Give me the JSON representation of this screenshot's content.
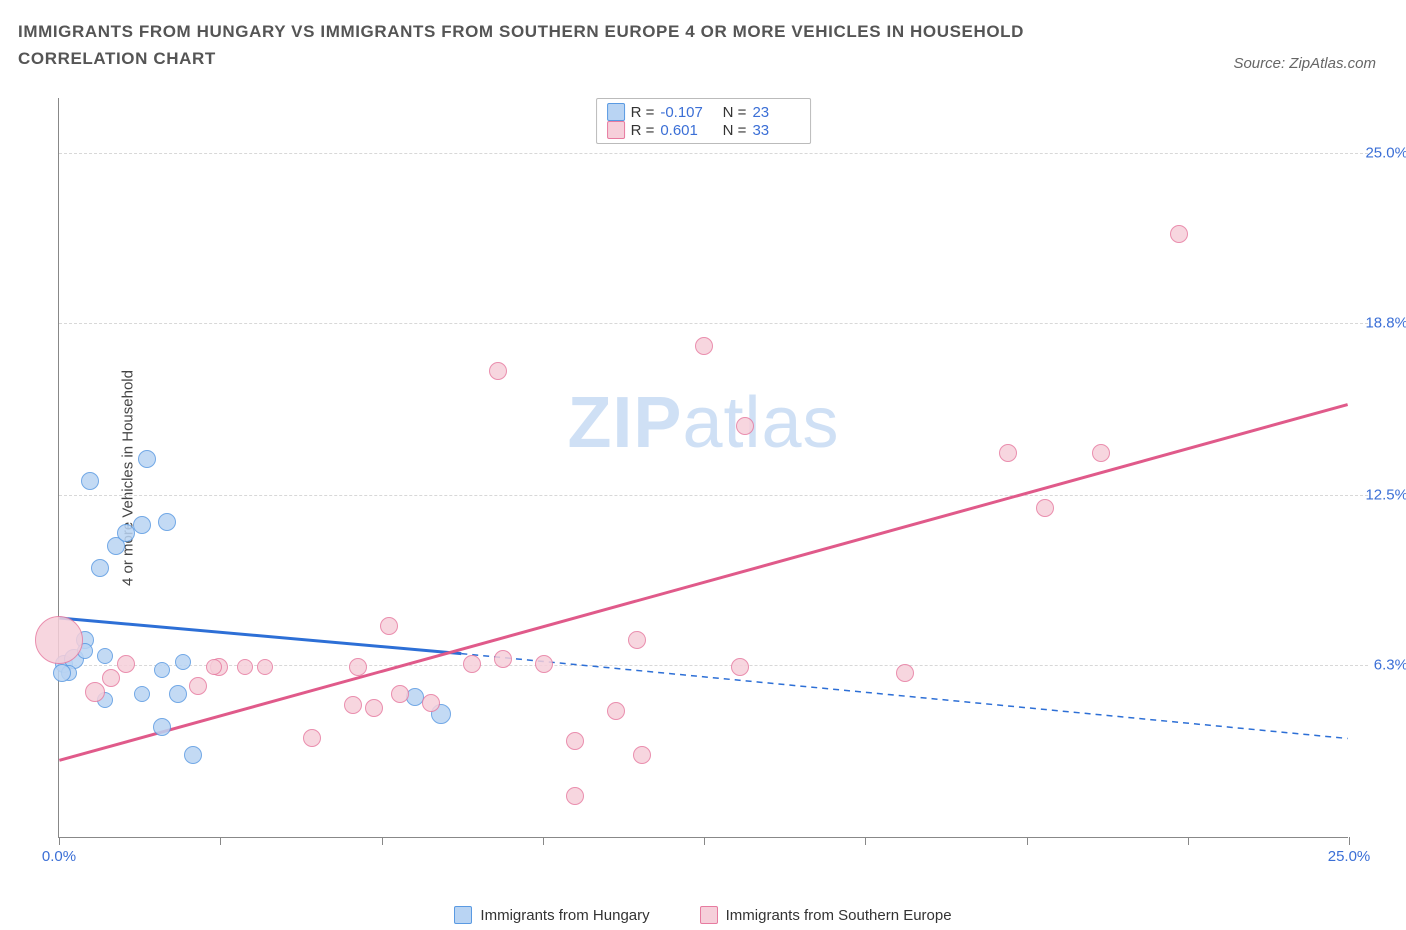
{
  "header": {
    "title": "IMMIGRANTS FROM HUNGARY VS IMMIGRANTS FROM SOUTHERN EUROPE 4 OR MORE VEHICLES IN HOUSEHOLD CORRELATION CHART",
    "source": "Source: ZipAtlas.com"
  },
  "chart": {
    "ylabel": "4 or more Vehicles in Household",
    "xlim": [
      0,
      25
    ],
    "ylim": [
      0,
      27
    ],
    "y_ticks": [
      {
        "v": 6.3,
        "label": "6.3%"
      },
      {
        "v": 12.5,
        "label": "12.5%"
      },
      {
        "v": 18.8,
        "label": "18.8%"
      },
      {
        "v": 25.0,
        "label": "25.0%"
      }
    ],
    "x_ticks": [
      0,
      3.125,
      6.25,
      9.375,
      12.5,
      15.625,
      18.75,
      21.875,
      25
    ],
    "x_tick_labels": [
      {
        "v": 0,
        "label": "0.0%"
      },
      {
        "v": 25,
        "label": "25.0%"
      }
    ],
    "watermark": {
      "zip": "ZIP",
      "atlas": "atlas"
    },
    "series": [
      {
        "key": "hungary",
        "name": "Immigrants from Hungary",
        "fill": "#b9d4f3",
        "stroke": "#5a9ae2",
        "line_stroke": "#2d6fd6",
        "R": "-0.107",
        "N": "23",
        "trend": {
          "x1": 0,
          "y1": 8.0,
          "xs": 7.8,
          "ys": 6.7,
          "x2": 25,
          "y2": 3.6
        },
        "points": [
          {
            "x": 0.1,
            "y": 6.3,
            "r": 9
          },
          {
            "x": 0.3,
            "y": 6.5,
            "r": 10
          },
          {
            "x": 0.2,
            "y": 6.0,
            "r": 8
          },
          {
            "x": 0.5,
            "y": 7.2,
            "r": 9
          },
          {
            "x": 0.6,
            "y": 13.0,
            "r": 9
          },
          {
            "x": 0.8,
            "y": 9.8,
            "r": 9
          },
          {
            "x": 0.9,
            "y": 6.6,
            "r": 8
          },
          {
            "x": 1.1,
            "y": 10.6,
            "r": 9
          },
          {
            "x": 1.3,
            "y": 11.1,
            "r": 9
          },
          {
            "x": 1.6,
            "y": 11.4,
            "r": 9
          },
          {
            "x": 1.7,
            "y": 13.8,
            "r": 9
          },
          {
            "x": 2.0,
            "y": 6.1,
            "r": 8
          },
          {
            "x": 2.1,
            "y": 11.5,
            "r": 9
          },
          {
            "x": 2.3,
            "y": 5.2,
            "r": 9
          },
          {
            "x": 2.0,
            "y": 4.0,
            "r": 9
          },
          {
            "x": 2.6,
            "y": 3.0,
            "r": 9
          },
          {
            "x": 2.4,
            "y": 6.4,
            "r": 8
          },
          {
            "x": 1.6,
            "y": 5.2,
            "r": 8
          },
          {
            "x": 0.5,
            "y": 6.8,
            "r": 8
          },
          {
            "x": 6.9,
            "y": 5.1,
            "r": 9
          },
          {
            "x": 7.4,
            "y": 4.5,
            "r": 10
          },
          {
            "x": 0.9,
            "y": 5.0,
            "r": 8
          },
          {
            "x": 0.05,
            "y": 6.0,
            "r": 9
          }
        ]
      },
      {
        "key": "seurope",
        "name": "Immigrants from Southern Europe",
        "fill": "#f6cfda",
        "stroke": "#e77ba0",
        "line_stroke": "#e05a8a",
        "R": "0.601",
        "N": "33",
        "trend": {
          "x1": 0,
          "y1": 2.8,
          "x2": 25,
          "y2": 15.8
        },
        "points": [
          {
            "x": 0.0,
            "y": 7.2,
            "r": 24
          },
          {
            "x": 0.7,
            "y": 5.3,
            "r": 10
          },
          {
            "x": 1.3,
            "y": 6.3,
            "r": 9
          },
          {
            "x": 1.0,
            "y": 5.8,
            "r": 9
          },
          {
            "x": 2.7,
            "y": 5.5,
            "r": 9
          },
          {
            "x": 3.1,
            "y": 6.2,
            "r": 9
          },
          {
            "x": 3.0,
            "y": 6.2,
            "r": 8
          },
          {
            "x": 3.6,
            "y": 6.2,
            "r": 8
          },
          {
            "x": 4.0,
            "y": 6.2,
            "r": 8
          },
          {
            "x": 4.9,
            "y": 3.6,
            "r": 9
          },
          {
            "x": 5.8,
            "y": 6.2,
            "r": 9
          },
          {
            "x": 5.7,
            "y": 4.8,
            "r": 9
          },
          {
            "x": 6.1,
            "y": 4.7,
            "r": 9
          },
          {
            "x": 6.4,
            "y": 7.7,
            "r": 9
          },
          {
            "x": 6.6,
            "y": 5.2,
            "r": 9
          },
          {
            "x": 7.2,
            "y": 4.9,
            "r": 9
          },
          {
            "x": 8.0,
            "y": 6.3,
            "r": 9
          },
          {
            "x": 8.6,
            "y": 6.5,
            "r": 9
          },
          {
            "x": 8.5,
            "y": 17.0,
            "r": 9
          },
          {
            "x": 9.4,
            "y": 6.3,
            "r": 9
          },
          {
            "x": 10.0,
            "y": 3.5,
            "r": 9
          },
          {
            "x": 10.0,
            "y": 1.5,
            "r": 9
          },
          {
            "x": 10.8,
            "y": 4.6,
            "r": 9
          },
          {
            "x": 11.2,
            "y": 7.2,
            "r": 9
          },
          {
            "x": 11.3,
            "y": 3.0,
            "r": 9
          },
          {
            "x": 12.5,
            "y": 17.9,
            "r": 9
          },
          {
            "x": 13.2,
            "y": 6.2,
            "r": 9
          },
          {
            "x": 13.3,
            "y": 15.0,
            "r": 9
          },
          {
            "x": 16.4,
            "y": 6.0,
            "r": 9
          },
          {
            "x": 18.4,
            "y": 14.0,
            "r": 9
          },
          {
            "x": 19.1,
            "y": 12.0,
            "r": 9
          },
          {
            "x": 20.2,
            "y": 14.0,
            "r": 9
          },
          {
            "x": 21.7,
            "y": 22.0,
            "r": 9
          }
        ]
      }
    ]
  },
  "legend": {
    "items": [
      "Immigrants from Hungary",
      "Immigrants from Southern Europe"
    ]
  }
}
